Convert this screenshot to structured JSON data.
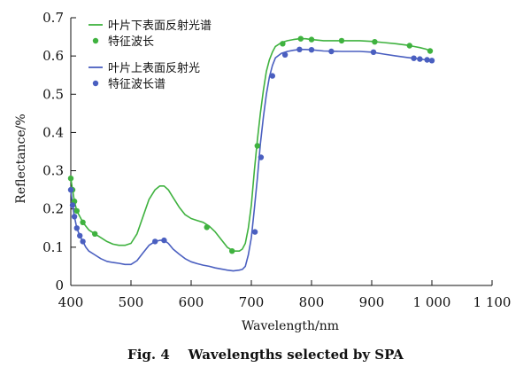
{
  "chart_data": {
    "type": "line",
    "caption": "Fig. 4    Wavelengths selected by SPA",
    "xlabel": "Wavelength/nm",
    "ylabel": "Reflectance/%",
    "xlim": [
      400,
      1100
    ],
    "ylim": [
      0,
      0.7
    ],
    "x_ticks": [
      400,
      500,
      600,
      700,
      800,
      900,
      1000,
      1100
    ],
    "x_tick_labels": [
      "400",
      "500",
      "600",
      "700",
      "800",
      "900",
      "1 000",
      "1 100"
    ],
    "y_ticks": [
      0,
      0.1,
      0.2,
      0.3,
      0.4,
      0.5,
      0.6,
      0.7
    ],
    "y_tick_labels": [
      "0",
      "0.1",
      "0.2",
      "0.3",
      "0.4",
      "0.5",
      "0.6",
      "0.7"
    ],
    "colors": {
      "green": "#3fb23f",
      "blue": "#4a5fc0"
    },
    "legend": [
      {
        "label": "叶片下表面反射光谱",
        "kind": "line",
        "color": "#3fb23f"
      },
      {
        "label": "特征波长",
        "kind": "marker",
        "color": "#3fb23f"
      },
      {
        "label": "叶片上表面反射光",
        "kind": "line",
        "color": "#4a5fc0"
      },
      {
        "label": "特征波长谱",
        "kind": "marker",
        "color": "#4a5fc0"
      }
    ],
    "series": [
      {
        "name": "叶片下表面反射光谱",
        "color": "#3fb23f",
        "x": [
          400,
          403,
          406,
          410,
          415,
          420,
          425,
          430,
          440,
          450,
          460,
          470,
          480,
          490,
          500,
          510,
          520,
          530,
          540,
          548,
          555,
          562,
          570,
          580,
          590,
          600,
          610,
          620,
          630,
          640,
          650,
          660,
          670,
          680,
          685,
          690,
          695,
          700,
          705,
          710,
          715,
          720,
          725,
          730,
          735,
          740,
          750,
          760,
          770,
          780,
          790,
          800,
          820,
          850,
          880,
          900,
          920,
          940,
          960,
          970,
          980,
          990,
          1000
        ],
        "y": [
          0.28,
          0.25,
          0.22,
          0.195,
          0.18,
          0.165,
          0.155,
          0.145,
          0.135,
          0.125,
          0.115,
          0.108,
          0.105,
          0.105,
          0.11,
          0.135,
          0.18,
          0.225,
          0.25,
          0.26,
          0.26,
          0.25,
          0.23,
          0.205,
          0.185,
          0.175,
          0.17,
          0.165,
          0.155,
          0.14,
          0.12,
          0.1,
          0.09,
          0.09,
          0.095,
          0.11,
          0.15,
          0.21,
          0.3,
          0.38,
          0.45,
          0.51,
          0.56,
          0.59,
          0.61,
          0.625,
          0.635,
          0.64,
          0.643,
          0.645,
          0.645,
          0.643,
          0.64,
          0.64,
          0.64,
          0.638,
          0.635,
          0.632,
          0.628,
          0.625,
          0.622,
          0.618,
          0.612
        ]
      },
      {
        "name": "叶片上表面反射光",
        "color": "#4a5fc0",
        "x": [
          400,
          403,
          406,
          410,
          415,
          420,
          425,
          430,
          440,
          450,
          460,
          470,
          480,
          490,
          500,
          510,
          520,
          530,
          540,
          548,
          555,
          562,
          570,
          580,
          590,
          600,
          610,
          620,
          630,
          640,
          650,
          660,
          670,
          680,
          685,
          690,
          695,
          700,
          705,
          710,
          715,
          720,
          725,
          730,
          735,
          740,
          750,
          760,
          770,
          780,
          790,
          800,
          820,
          850,
          880,
          900,
          920,
          940,
          960,
          970,
          980,
          990,
          1000
        ],
        "y": [
          0.25,
          0.21,
          0.18,
          0.15,
          0.13,
          0.115,
          0.1,
          0.09,
          0.08,
          0.07,
          0.063,
          0.06,
          0.058,
          0.055,
          0.055,
          0.065,
          0.085,
          0.105,
          0.115,
          0.118,
          0.118,
          0.11,
          0.095,
          0.082,
          0.07,
          0.062,
          0.057,
          0.053,
          0.05,
          0.046,
          0.043,
          0.04,
          0.038,
          0.04,
          0.042,
          0.05,
          0.08,
          0.125,
          0.2,
          0.28,
          0.37,
          0.44,
          0.5,
          0.545,
          0.575,
          0.595,
          0.607,
          0.612,
          0.615,
          0.617,
          0.617,
          0.616,
          0.613,
          0.612,
          0.612,
          0.61,
          0.605,
          0.6,
          0.596,
          0.594,
          0.592,
          0.59,
          0.588
        ]
      }
    ],
    "markers": [
      {
        "name": "特征波长",
        "color": "#3fb23f",
        "x": [
          400,
          403,
          406,
          410,
          420,
          440,
          626,
          668,
          710,
          752,
          782,
          800,
          850,
          905,
          963,
          997
        ],
        "y": [
          0.28,
          0.25,
          0.22,
          0.195,
          0.165,
          0.135,
          0.152,
          0.09,
          0.365,
          0.632,
          0.645,
          0.643,
          0.64,
          0.637,
          0.627,
          0.613
        ]
      },
      {
        "name": "特征波长谱",
        "color": "#4a5fc0",
        "x": [
          400,
          403,
          406,
          410,
          415,
          420,
          540,
          555,
          706,
          716,
          735,
          756,
          780,
          800,
          833,
          903,
          970,
          980,
          992,
          1000
        ],
        "y": [
          0.25,
          0.21,
          0.18,
          0.15,
          0.13,
          0.115,
          0.115,
          0.118,
          0.14,
          0.335,
          0.548,
          0.603,
          0.617,
          0.616,
          0.612,
          0.61,
          0.594,
          0.592,
          0.59,
          0.588
        ]
      }
    ]
  }
}
